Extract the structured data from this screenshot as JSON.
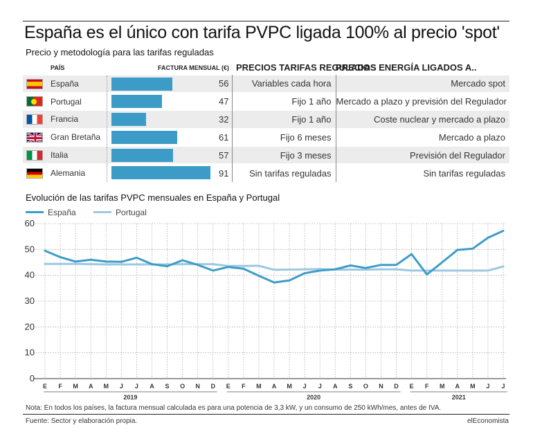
{
  "header": {
    "title": "España es el único con tarifa PVPC ligada 100% al precio 'spot'",
    "subtitle": "Precio y metodología para las tarifas reguladas"
  },
  "table": {
    "headers": {
      "country": "PAÍS",
      "bill": "FACTURA MENSUAL (€)",
      "regulated": "PRECIOS TARIFAS REGULADAS",
      "energy": "PRECIOS ENERGÍA LIGADOS A.."
    },
    "bar_max": 91,
    "rows": [
      {
        "flag": "spain-flag-icon",
        "country": "España",
        "bill": 56,
        "regulated": "Variables cada hora",
        "energy": "Mercado spot"
      },
      {
        "flag": "portugal-flag-icon",
        "country": "Portugal",
        "bill": 47,
        "regulated": "Fijo 1 año",
        "energy": "Mercado a plazo y previsión del Regulador"
      },
      {
        "flag": "france-flag-icon",
        "country": "Francia",
        "bill": 32,
        "regulated": "Fijo 1 año",
        "energy": "Coste nuclear y mercado a plazo"
      },
      {
        "flag": "uk-flag-icon",
        "country": "Gran Bretaña",
        "bill": 61,
        "regulated": "Fijo 6 meses",
        "energy": "Mercado a plazo"
      },
      {
        "flag": "italy-flag-icon",
        "country": "Italia",
        "bill": 57,
        "regulated": "Fijo 3 meses",
        "energy": "Previsión del Regulador"
      },
      {
        "flag": "germany-flag-icon",
        "country": "Alemania",
        "bill": 91,
        "regulated": "Sin tarifas reguladas",
        "energy": "Sin tarifas reguladas"
      }
    ]
  },
  "chart_data": {
    "type": "line",
    "title": "Evolución de las tarifas PVPC mensuales en España y Portugal",
    "ylim": [
      0,
      60
    ],
    "yticks": [
      0,
      10,
      20,
      30,
      40,
      50,
      60
    ],
    "grid": true,
    "legend": "top-left",
    "x": [
      "E",
      "F",
      "M",
      "A",
      "M",
      "J",
      "J",
      "A",
      "S",
      "O",
      "N",
      "D",
      "E",
      "F",
      "M",
      "A",
      "M",
      "J",
      "J",
      "A",
      "S",
      "O",
      "N",
      "D",
      "E",
      "F",
      "M",
      "A",
      "M",
      "J",
      "J"
    ],
    "year_labels": [
      {
        "label": "2019",
        "start": 0,
        "end": 11
      },
      {
        "label": "2020",
        "start": 12,
        "end": 23
      },
      {
        "label": "2021",
        "start": 24,
        "end": 30
      }
    ],
    "series": [
      {
        "name": "España",
        "color": "#3d9cc7",
        "values": [
          49.5,
          47,
          45.3,
          46,
          45.3,
          45.2,
          46.8,
          44.3,
          43.5,
          45.8,
          44,
          41.8,
          43.2,
          42.5,
          39.8,
          37.2,
          38,
          40.8,
          41.8,
          42.3,
          43.8,
          42.8,
          44,
          44,
          48.2,
          40.3,
          45,
          49.8,
          50.3,
          54.5,
          57.2
        ]
      },
      {
        "name": "Portugal",
        "color": "#9cc8e1",
        "values": [
          44.4,
          44.4,
          44.4,
          44.3,
          44.2,
          44.2,
          44.2,
          44.2,
          44.2,
          44.3,
          44.3,
          44.3,
          43.6,
          43.6,
          43.7,
          42.1,
          42.2,
          42.3,
          42.4,
          42.2,
          42.2,
          42.2,
          42.3,
          42.3,
          41.8,
          41.8,
          41.8,
          41.8,
          41.8,
          41.8,
          43.4
        ]
      }
    ]
  },
  "footer": {
    "note": "Nota: En todos los países, la factura mensual calculada es para una potencia de 3,3 kW, y un consumo de 250 kWh/mes, antes de IVA.",
    "source": "Fuente: Sector y elaboración propia.",
    "brand": "elEconomista"
  }
}
